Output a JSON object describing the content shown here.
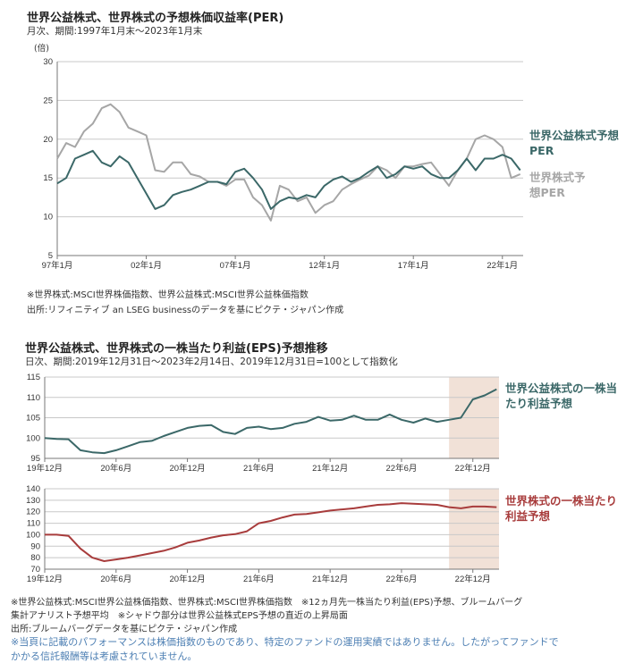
{
  "colors": {
    "utilities": "#3b6868",
    "world": "#a6a6a6",
    "world_eps": "#a83c3c",
    "shade": "#f1e1d7",
    "grid": "#c8c8c8"
  },
  "chart_data": [
    {
      "type": "line",
      "title": "世界公益株式、世界株式の予想株価収益率(PER)",
      "subtitle": "月次、期間:1997年1月末～2023年1月末",
      "ylabel": "(倍)",
      "ylim": [
        5,
        30
      ],
      "yticks": [
        5,
        10,
        15,
        20,
        25,
        30
      ],
      "grid": true,
      "xticks": [
        "97年1月",
        "02年1月",
        "07年1月",
        "12年1月",
        "17年1月",
        "22年1月"
      ],
      "x": [
        "1997-01",
        "1997-07",
        "1998-01",
        "1998-07",
        "1999-01",
        "1999-07",
        "2000-01",
        "2000-07",
        "2001-01",
        "2001-07",
        "2002-01",
        "2002-07",
        "2003-01",
        "2003-07",
        "2004-01",
        "2004-07",
        "2005-01",
        "2005-07",
        "2006-01",
        "2006-07",
        "2007-01",
        "2007-07",
        "2008-01",
        "2008-07",
        "2009-01",
        "2009-07",
        "2010-01",
        "2010-07",
        "2011-01",
        "2011-07",
        "2012-01",
        "2012-07",
        "2013-01",
        "2013-07",
        "2014-01",
        "2014-07",
        "2015-01",
        "2015-07",
        "2016-01",
        "2016-07",
        "2017-01",
        "2017-07",
        "2018-01",
        "2018-07",
        "2019-01",
        "2019-07",
        "2020-01",
        "2020-07",
        "2021-01",
        "2021-07",
        "2022-01",
        "2022-07",
        "2023-01"
      ],
      "series": [
        {
          "name": "世界公益株式予想PER",
          "key": "utilities",
          "values": [
            14.3,
            15,
            17.5,
            18,
            18.5,
            17,
            16.5,
            17.8,
            17,
            15,
            13,
            11,
            11.5,
            12.8,
            13.2,
            13.5,
            14,
            14.5,
            14.5,
            14.2,
            15.8,
            16.2,
            15,
            13.5,
            11,
            12,
            12.5,
            12.3,
            12.8,
            12.5,
            14,
            14.8,
            15.2,
            14.5,
            15,
            15.8,
            16.5,
            15,
            15.5,
            16.5,
            16.2,
            16.5,
            15.5,
            15,
            15,
            16,
            17.5,
            16,
            17.5,
            17.5,
            18,
            17.5,
            16
          ]
        },
        {
          "name": "世界株式予想PER",
          "key": "world",
          "values": [
            17.5,
            19.5,
            19,
            21,
            22,
            24,
            24.5,
            23.5,
            21.5,
            21,
            20.5,
            16,
            15.8,
            17,
            17,
            15.5,
            15.2,
            14.5,
            14.5,
            14,
            14.8,
            14.8,
            12.5,
            11.5,
            9.5,
            14,
            13.5,
            12,
            12.5,
            10.5,
            11.5,
            12,
            13.5,
            14.2,
            14.8,
            15.3,
            16.5,
            16,
            15,
            16.5,
            16.5,
            16.8,
            17,
            15.5,
            14,
            16,
            17.5,
            20,
            20.5,
            20,
            19,
            15,
            15.5
          ]
        }
      ],
      "notes": [
        "※世界株式:MSCI世界株価指数、世界公益株式:MSCI世界公益株価指数",
        "出所:リフィニティブ an LSEG businessのデータを基にピクテ・ジャパン作成"
      ]
    },
    {
      "type": "line",
      "title": "世界公益株式、世界株式の一株当たり利益(EPS)予想推移",
      "subtitle": "日次、期間:2019年12月31日～2023年2月14日、2019年12月31日=100として指数化",
      "panels": [
        {
          "series_name": "世界公益株式の一株当たり利益予想",
          "key": "utilities",
          "ylim": [
            95,
            115
          ],
          "yticks": [
            95,
            100,
            105,
            110,
            115
          ],
          "values": [
            100,
            99.8,
            99.7,
            97,
            96.5,
            96.3,
            97,
            98,
            99,
            99.3,
            100.5,
            101.5,
            102.5,
            103,
            103.2,
            101.5,
            101,
            102.5,
            102.8,
            102.2,
            102.5,
            103.5,
            104,
            105.2,
            104.3,
            104.5,
            105.5,
            104.5,
            104.5,
            105.8,
            104.5,
            103.8,
            104.8,
            104,
            104.5,
            105,
            109.5,
            110.5,
            112
          ]
        },
        {
          "series_name": "世界株式の一株当たり利益予想",
          "key": "world_eps",
          "ylim": [
            70,
            140
          ],
          "yticks": [
            70,
            80,
            90,
            100,
            110,
            120,
            130,
            140
          ],
          "values": [
            100,
            100,
            99,
            88,
            80,
            77,
            78.5,
            80,
            82,
            84,
            86,
            89,
            93,
            95,
            97.5,
            99.5,
            100.5,
            103,
            110,
            112,
            115,
            117.5,
            118,
            119.5,
            121,
            122,
            123,
            124.5,
            126,
            126.5,
            127.5,
            127,
            126.5,
            126,
            124,
            123,
            124.5,
            124.5,
            124
          ]
        }
      ],
      "x": [
        "2019-12",
        "2020-01",
        "2020-02",
        "2020-03",
        "2020-04",
        "2020-05",
        "2020-06",
        "2020-07",
        "2020-08",
        "2020-09",
        "2020-10",
        "2020-11",
        "2020-12",
        "2021-01",
        "2021-02",
        "2021-03",
        "2021-04",
        "2021-05",
        "2021-06",
        "2021-07",
        "2021-08",
        "2021-09",
        "2021-10",
        "2021-11",
        "2021-12",
        "2022-01",
        "2022-02",
        "2022-03",
        "2022-04",
        "2022-05",
        "2022-06",
        "2022-07",
        "2022-08",
        "2022-09",
        "2022-10",
        "2022-11",
        "2022-12",
        "2023-01",
        "2023-02"
      ],
      "xticks": [
        "19年12月",
        "20年6月",
        "20年12月",
        "21年6月",
        "21年12月",
        "22年6月",
        "22年12月"
      ],
      "shade": {
        "from": "2022-10",
        "to": "2023-02"
      },
      "notes": [
        "※世界公益株式:MSCI世界公益株価指数、世界株式:MSCI世界株価指数　※12ヵ月先一株当たり利益(EPS)予想、ブルームバーグ",
        "集計アナリスト予想平均　※シャドウ部分は世界公益株式EPS予想の直近の上昇局面",
        "出所:ブルームバーグデータを基にピクテ・ジャパン作成"
      ],
      "disclaimer": [
        "※当頁に記載のパフォーマンスは株価指数のものであり、特定のファンドの運用実績ではありません。したがってファンドで",
        "かかる信託報酬等は考慮されていません。"
      ]
    }
  ]
}
